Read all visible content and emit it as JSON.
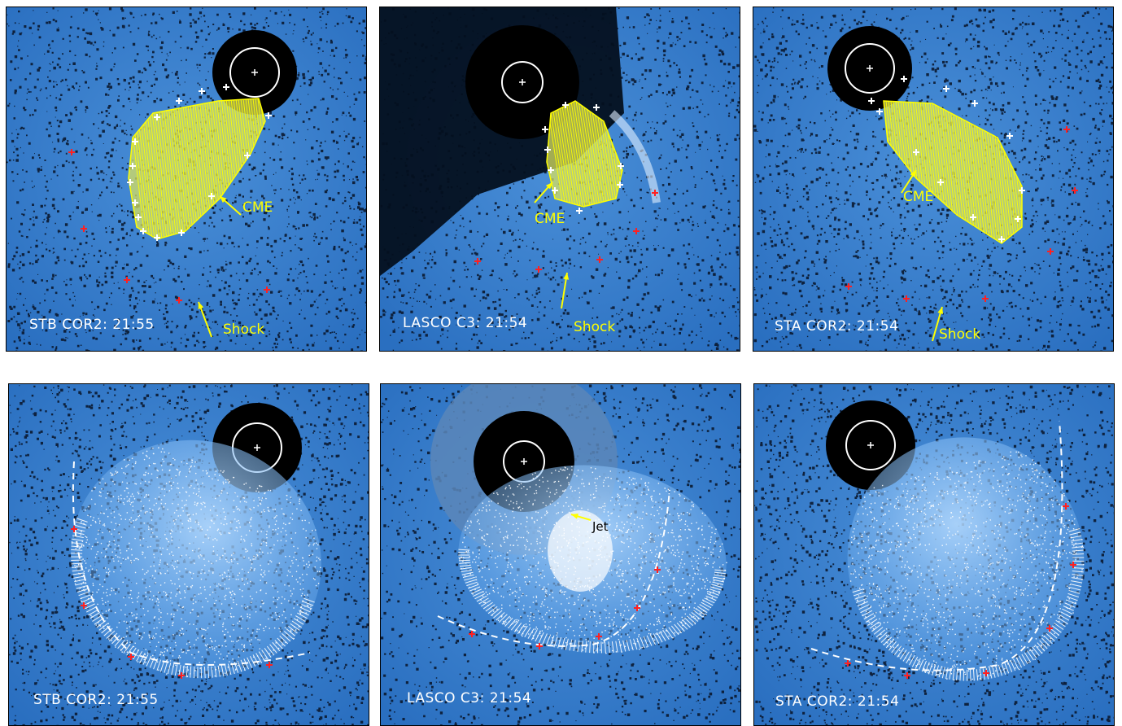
{
  "panels": [
    {
      "label": "STB COR2: 21:55",
      "annotations": {
        "cme": "CME",
        "shock": "Shock"
      }
    },
    {
      "label": "LASCO C3: 21:54",
      "annotations": {
        "cme": "CME",
        "shock": "Shock"
      }
    },
    {
      "label": "STA COR2: 21:54",
      "annotations": {
        "cme": "CME",
        "shock": "Shock"
      }
    },
    {
      "label": "STB COR2: 21:55",
      "annotations": {}
    },
    {
      "label": "LASCO C3: 21:54",
      "annotations": {
        "jet": "Jet"
      }
    },
    {
      "label": "STA COR2: 21:54",
      "annotations": {}
    }
  ],
  "colors": {
    "background": "#2a6fc0",
    "occulter": "#000000",
    "cme_mesh": "#ffff00",
    "shock_mesh": "#ffffff",
    "shock_marker": "#ff2020",
    "cme_marker": "#ffffff",
    "annotation": "#ffff00"
  }
}
